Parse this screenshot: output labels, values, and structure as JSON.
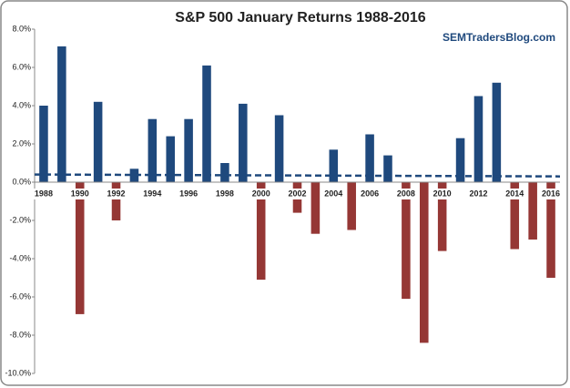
{
  "chart_data": {
    "type": "bar",
    "title": "S&P 500 January Returns 1988-2016",
    "subtitle": "SEMTradersBlog.com",
    "categories": [
      "1988",
      null,
      "1990",
      null,
      "1992",
      null,
      "1994",
      null,
      "1996",
      null,
      "1998",
      null,
      "2000",
      null,
      "2002",
      null,
      "2004",
      null,
      "2006",
      null,
      "2008",
      null,
      "2010",
      null,
      "2012",
      null,
      "2014",
      null,
      "2016"
    ],
    "values": [
      4.0,
      7.1,
      -6.9,
      4.2,
      -2.0,
      0.7,
      3.3,
      2.4,
      3.3,
      6.1,
      1.0,
      4.1,
      -5.1,
      3.5,
      -1.6,
      -2.7,
      1.7,
      -2.5,
      2.5,
      1.4,
      -6.1,
      -8.4,
      -3.6,
      2.3,
      4.5,
      5.2,
      -3.5,
      -3.0,
      -5.0
    ],
    "positive_color": "#1f497d",
    "negative_color": "#953735",
    "trendline": [
      0.4,
      0.3
    ],
    "trendline_color": "#1f497d",
    "ylim": [
      -10,
      8
    ],
    "yticks": [
      {
        "value": -10,
        "label": "-10.0%"
      },
      {
        "value": -8,
        "label": "-8.0%"
      },
      {
        "value": -6,
        "label": "-6.0%"
      },
      {
        "value": -4,
        "label": "-4.0%"
      },
      {
        "value": -2,
        "label": "-2.0%"
      },
      {
        "value": 0,
        "label": "0.0%"
      },
      {
        "value": 2,
        "label": "2.0%"
      },
      {
        "value": 4,
        "label": "4.0%"
      },
      {
        "value": 6,
        "label": "6.0%"
      },
      {
        "value": 8,
        "label": "8.0%"
      }
    ],
    "grid": false
  }
}
